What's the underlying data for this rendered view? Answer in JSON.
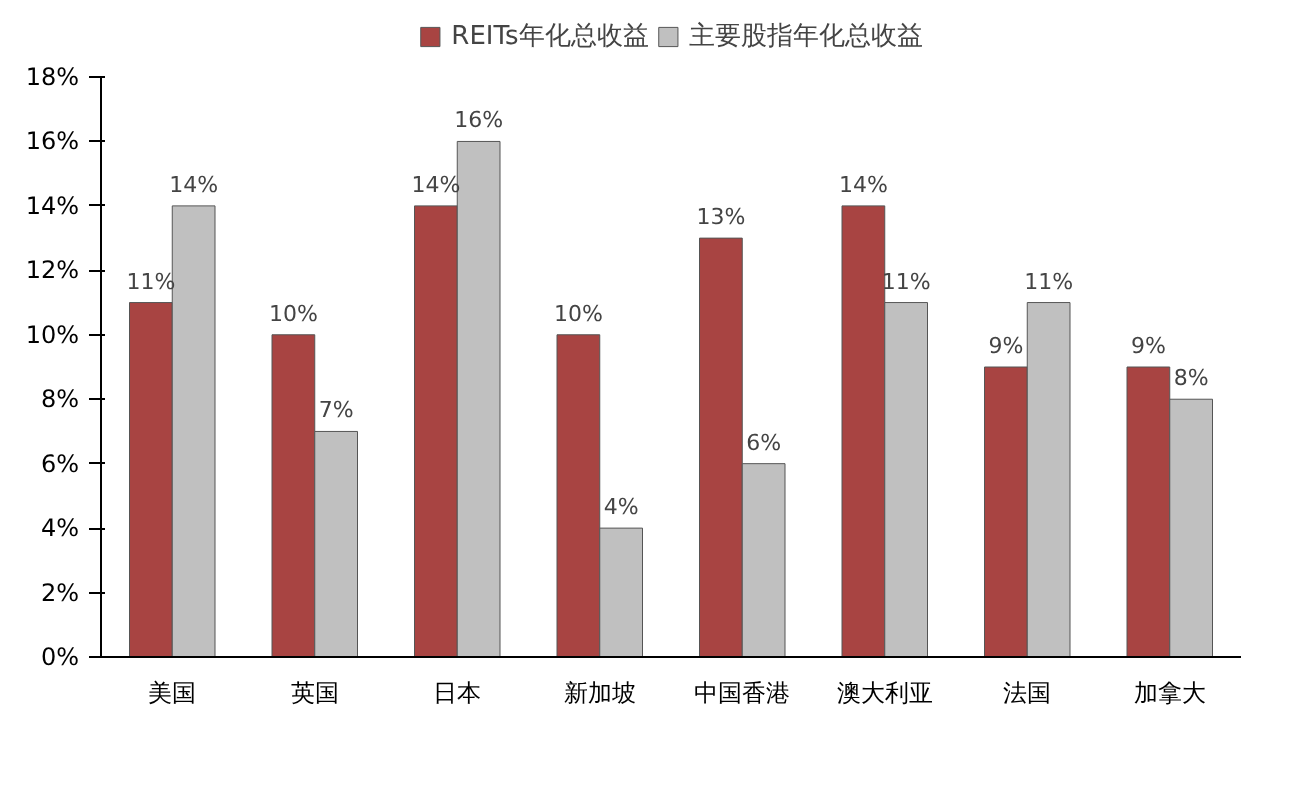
{
  "chart_data": {
    "type": "bar",
    "categories": [
      "美国",
      "英国",
      "日本",
      "新加坡",
      "中国香港",
      "澳大利亚",
      "法国",
      "加拿大"
    ],
    "series": [
      {
        "name": "REITs年化总收益",
        "color": "#a84442",
        "values": [
          11,
          10,
          14,
          10,
          13,
          14,
          9,
          9
        ],
        "value_labels": [
          "11%",
          "10%",
          "14%",
          "10%",
          "13%",
          "14%",
          "9%",
          "9%"
        ]
      },
      {
        "name": "主要股指年化总收益",
        "color": "#c0c0c0",
        "values": [
          14,
          7,
          16,
          4,
          6,
          11,
          11,
          8
        ],
        "value_labels": [
          "14%",
          "7%",
          "16%",
          "4%",
          "6%",
          "11%",
          "11%",
          "8%"
        ]
      }
    ],
    "ylim": [
      0,
      18
    ],
    "yticks": [
      {
        "value": 0,
        "label": "0%"
      },
      {
        "value": 2,
        "label": "2%"
      },
      {
        "value": 4,
        "label": "4%"
      },
      {
        "value": 6,
        "label": "6%"
      },
      {
        "value": 8,
        "label": "8%"
      },
      {
        "value": 10,
        "label": "10%"
      },
      {
        "value": 12,
        "label": "12%"
      },
      {
        "value": 14,
        "label": "14%"
      },
      {
        "value": 16,
        "label": "16%"
      },
      {
        "value": 18,
        "label": "18%"
      }
    ],
    "grid": false,
    "legend": "top"
  }
}
